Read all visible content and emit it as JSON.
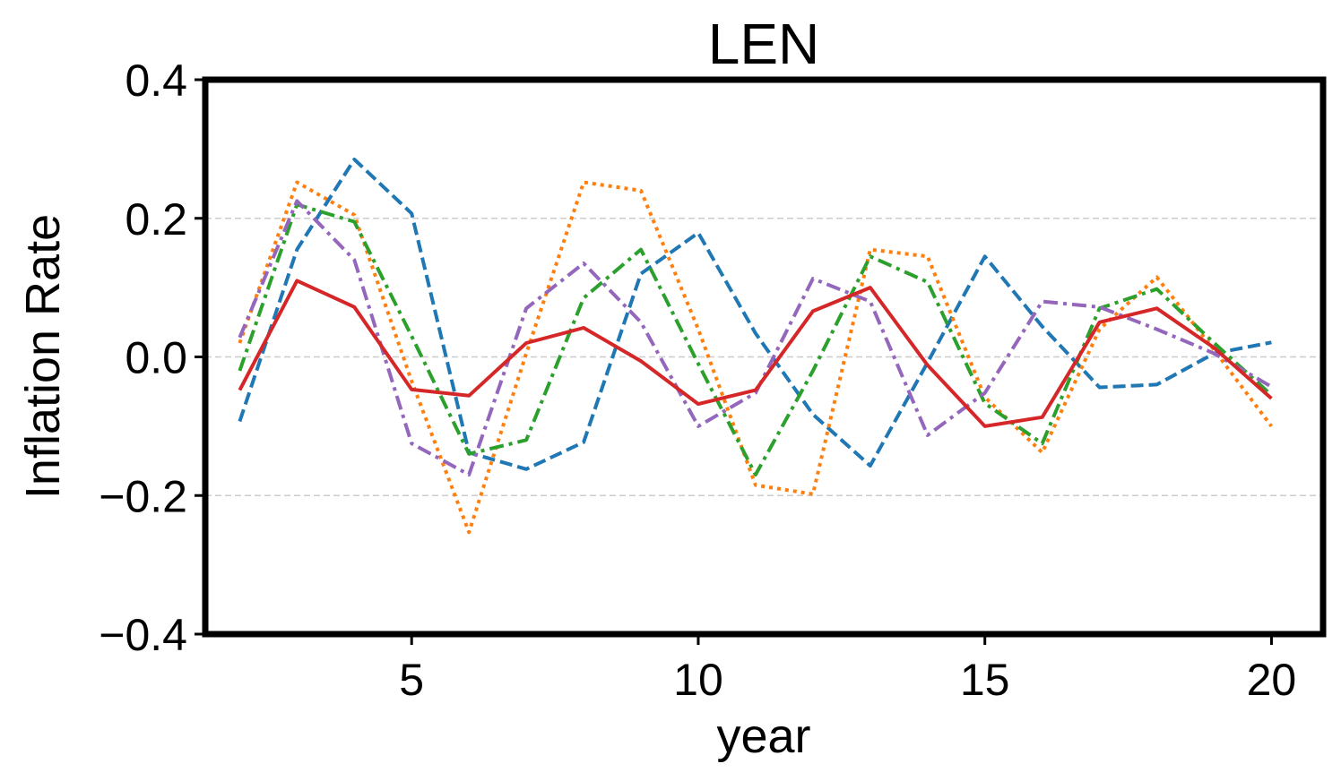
{
  "chart_data": {
    "type": "line",
    "title": "LEN",
    "xlabel": "year",
    "ylabel": "Inflation Rate",
    "xlim": [
      1.4,
      20.9
    ],
    "ylim": [
      -0.4,
      0.4
    ],
    "xticks": [
      5,
      10,
      15,
      20
    ],
    "xtick_labels": [
      "5",
      "10",
      "15",
      "20"
    ],
    "yticks": [
      -0.4,
      -0.2,
      0.0,
      0.2,
      0.4
    ],
    "ytick_labels": [
      "−0.4",
      "−0.2",
      "0.0",
      "0.2",
      "0.4"
    ],
    "grid": "horizontal dashed at y ticks",
    "legend": "none",
    "x": [
      2,
      3,
      4,
      5,
      6,
      7,
      8,
      9,
      10,
      11,
      12,
      13,
      14,
      15,
      16,
      17,
      18,
      19,
      20
    ],
    "series": [
      {
        "name": "series-1",
        "color": "#1f77b4",
        "style": "dashed",
        "values": [
          -0.093,
          0.155,
          0.285,
          0.207,
          -0.138,
          -0.162,
          -0.123,
          0.12,
          0.179,
          0.034,
          -0.083,
          -0.157,
          -0.008,
          0.145,
          0.044,
          -0.044,
          -0.04,
          0.005,
          0.021
        ]
      },
      {
        "name": "series-2",
        "color": "#ff7f0e",
        "style": "dotted",
        "values": [
          0.02,
          0.252,
          0.205,
          -0.035,
          -0.253,
          0.005,
          0.252,
          0.24,
          0.04,
          -0.185,
          -0.198,
          0.155,
          0.145,
          -0.058,
          -0.138,
          0.04,
          0.115,
          0.01,
          -0.1
        ]
      },
      {
        "name": "series-3",
        "color": "#2ca02c",
        "style": "dashdot",
        "values": [
          -0.02,
          0.22,
          0.195,
          0.03,
          -0.14,
          -0.12,
          0.085,
          0.155,
          -0.01,
          -0.17,
          -0.02,
          0.145,
          0.108,
          -0.067,
          -0.125,
          0.07,
          0.098,
          0.02,
          -0.055
        ]
      },
      {
        "name": "series-4",
        "color": "#9467bd",
        "style": "dashdot",
        "values": [
          0.028,
          0.225,
          0.14,
          -0.125,
          -0.17,
          0.07,
          0.135,
          0.05,
          -0.1,
          -0.052,
          0.113,
          0.08,
          -0.113,
          -0.052,
          0.08,
          0.072,
          0.04,
          0.005,
          -0.043
        ]
      },
      {
        "name": "series-5",
        "color": "#d62728",
        "style": "solid",
        "values": [
          -0.048,
          0.11,
          0.072,
          -0.047,
          -0.056,
          0.02,
          0.042,
          -0.006,
          -0.068,
          -0.048,
          0.066,
          0.1,
          -0.012,
          -0.1,
          -0.087,
          0.05,
          0.07,
          0.013,
          -0.06
        ]
      }
    ]
  }
}
